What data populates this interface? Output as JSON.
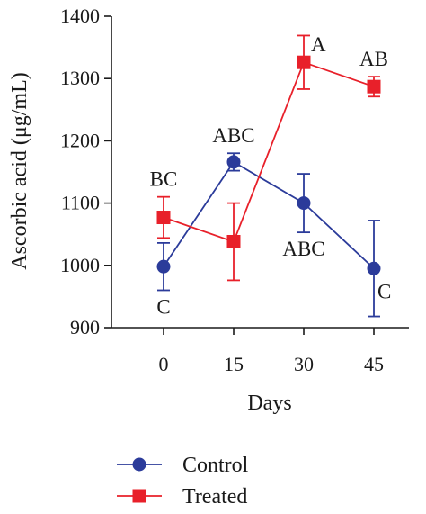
{
  "chart_data": {
    "type": "line",
    "xlabel": "Days",
    "ylabel": "Ascorbic acid (μg/mL)",
    "x": [
      0,
      15,
      30,
      45
    ],
    "x_tick_labels": [
      "0",
      "15",
      "30",
      "45"
    ],
    "ylim": [
      900,
      1400
    ],
    "y_ticks": [
      900,
      1000,
      1100,
      1200,
      1300,
      1400
    ],
    "y_tick_labels": [
      "900",
      "1000",
      "1100",
      "1200",
      "1300",
      "1400"
    ],
    "grid": false,
    "legend_position": "bottom-left",
    "series": [
      {
        "name": "Control",
        "color": "#2b3b9a",
        "marker": "circle",
        "values": [
          998,
          1166,
          1100,
          995
        ],
        "error": [
          38,
          14,
          47,
          77
        ],
        "labels": [
          "C",
          "ABC",
          "ABC",
          "C"
        ],
        "label_positions": [
          "below",
          "above",
          "below",
          "right"
        ]
      },
      {
        "name": "Treated",
        "color": "#e8202a",
        "marker": "square",
        "values": [
          1077,
          1038,
          1326,
          1287
        ],
        "error": [
          33,
          62,
          43,
          16
        ],
        "labels": [
          "BC",
          "",
          "A",
          "AB"
        ],
        "label_positions": [
          "above",
          "above",
          "right",
          "above"
        ]
      }
    ]
  }
}
